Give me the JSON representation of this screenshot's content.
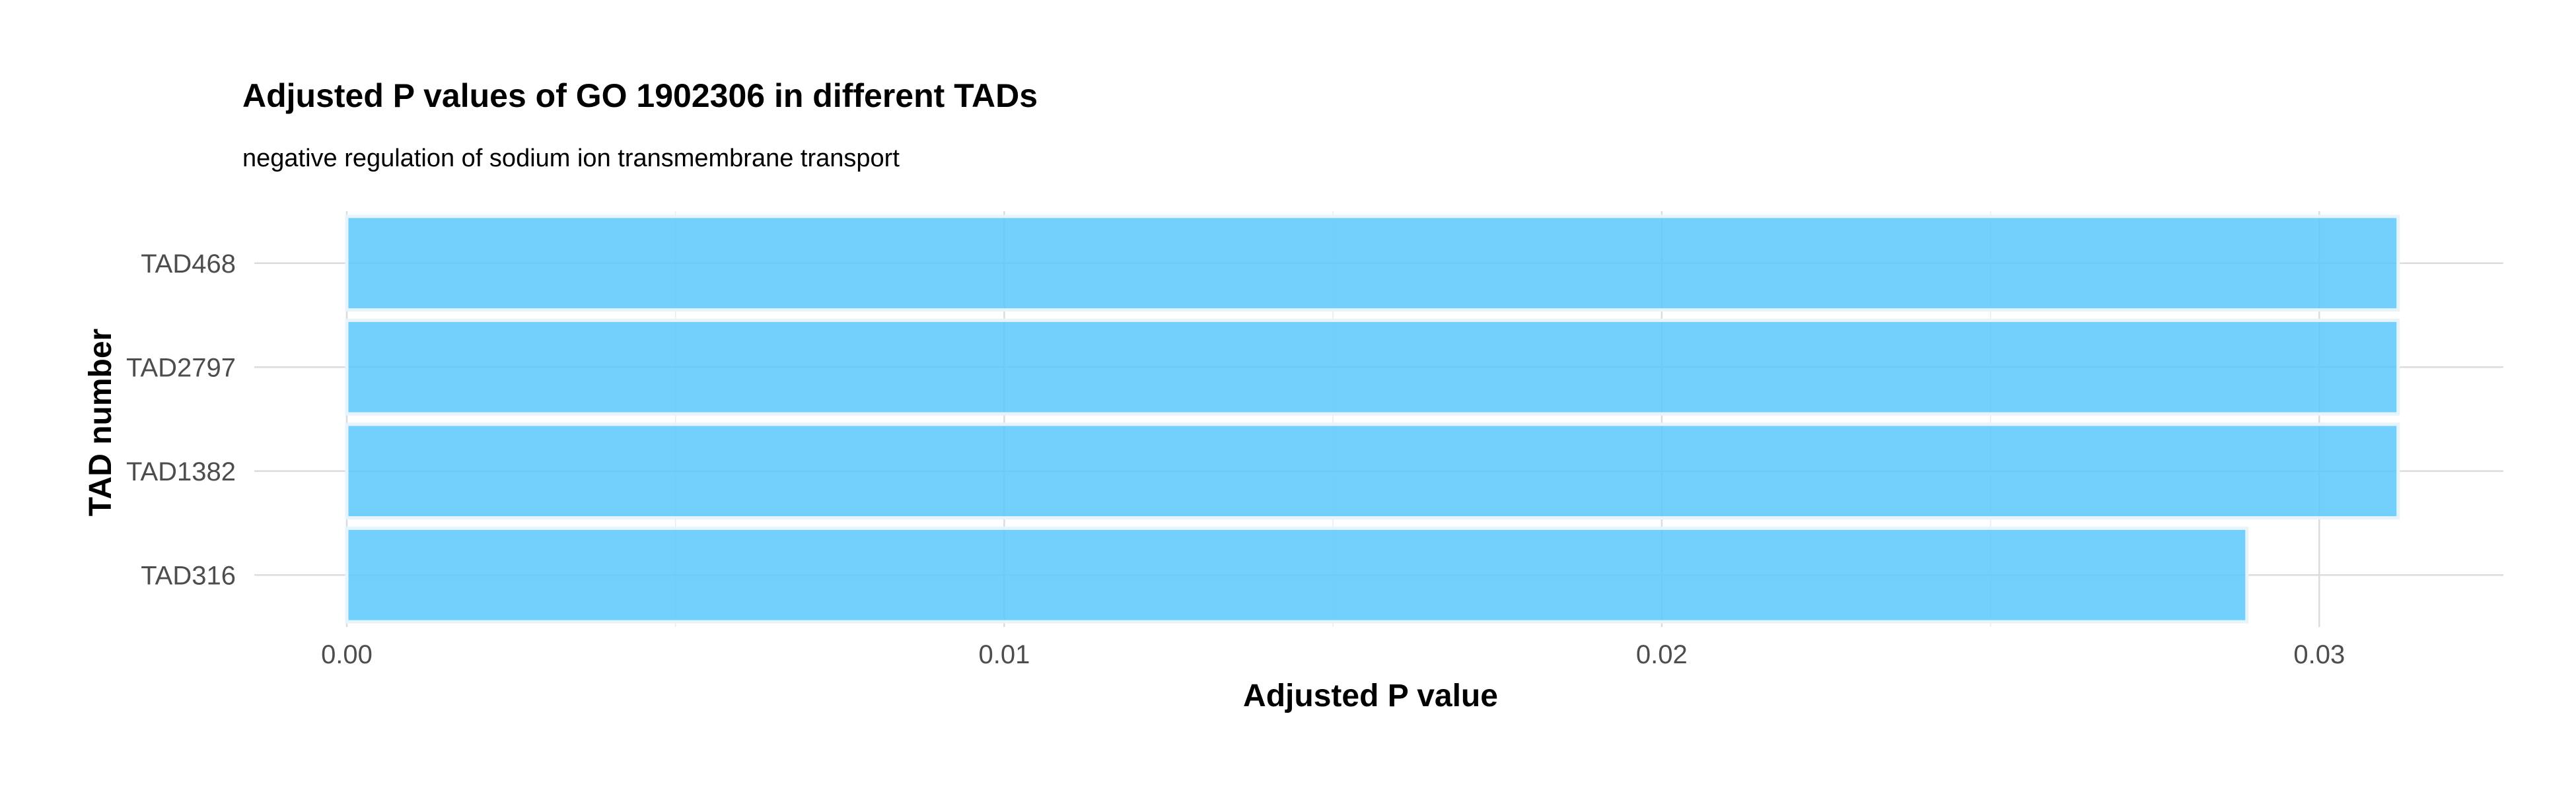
{
  "chart_data": {
    "type": "bar",
    "orientation": "horizontal",
    "title": "Adjusted P values of GO 1902306 in different TADs",
    "subtitle": "negative regulation of sodium ion transmembrane transport",
    "xlabel": "Adjusted P value",
    "ylabel": "TAD number",
    "categories": [
      "TAD468",
      "TAD2797",
      "TAD1382",
      "TAD316"
    ],
    "values": [
      0.0312,
      0.0312,
      0.0312,
      0.0289
    ],
    "xlim": [
      0,
      0.0328
    ],
    "x_ticks": [
      0,
      0.01,
      0.02,
      0.03
    ],
    "x_tick_labels": [
      "0.00",
      "0.01",
      "0.02",
      "0.03"
    ],
    "grid": true,
    "bar_color": "#5bc8fb",
    "legend": "none"
  }
}
